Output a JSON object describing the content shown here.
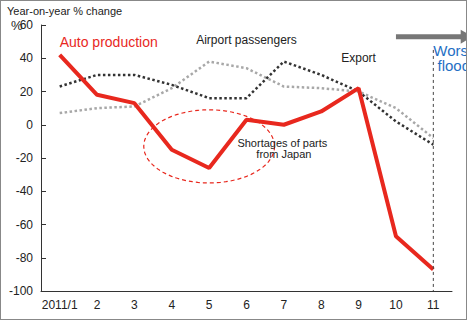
{
  "chart_data": {
    "type": "line",
    "title": "Year-on-year % change",
    "ylabel": "%",
    "categories": [
      "2011/1",
      "2",
      "3",
      "4",
      "5",
      "6",
      "7",
      "8",
      "9",
      "10",
      "11"
    ],
    "series": [
      {
        "name": "Auto production",
        "color": "#e8281e",
        "line_style": "solid",
        "values": [
          42,
          18,
          13,
          -15,
          -26,
          3,
          0,
          8,
          22,
          -67,
          -87
        ]
      },
      {
        "name": "Airport passengers",
        "color": "#a8a8a8",
        "line_style": "dotted",
        "values": [
          7,
          10,
          11,
          22,
          38,
          34,
          23,
          22,
          20,
          10,
          -8
        ]
      },
      {
        "name": "Export",
        "color": "#333333",
        "line_style": "dotted",
        "values": [
          23,
          30,
          30,
          24,
          16,
          16,
          38,
          30,
          20,
          2,
          -12
        ]
      }
    ],
    "ylim": [
      -100,
      60
    ],
    "yticks": [
      -100,
      -80,
      -60,
      -40,
      -20,
      0,
      20,
      40,
      60
    ],
    "grid": false,
    "annotations": [
      "Shortages of parts from Japan",
      "Worsening flood"
    ]
  }
}
